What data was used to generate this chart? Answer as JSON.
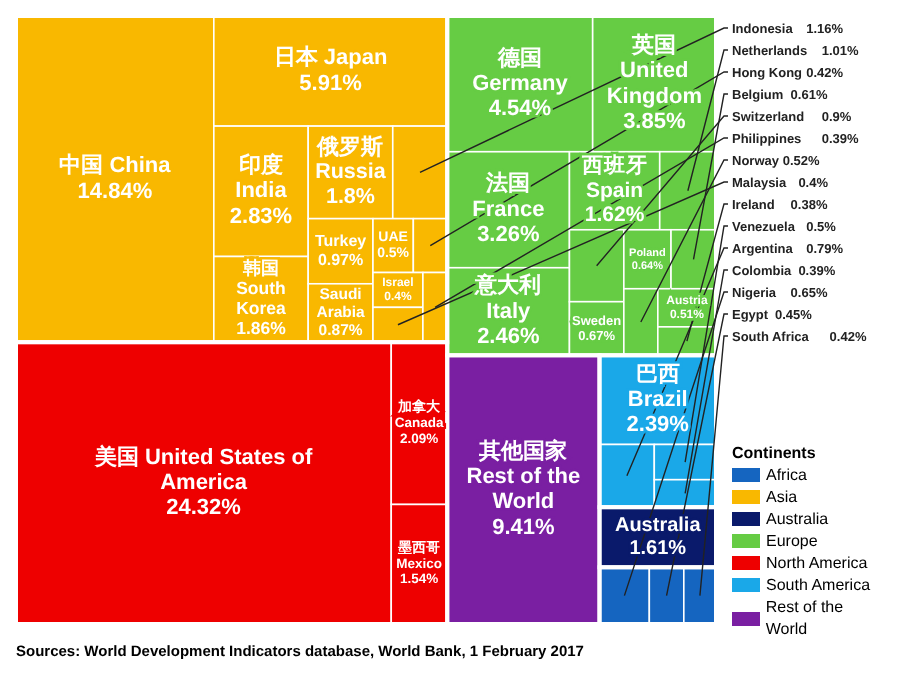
{
  "chart_data": {
    "type": "other",
    "categories": [
      "中国 China",
      "日本 Japan",
      "印度 India",
      "韩国 South Korea",
      "俄罗斯 Russia",
      "Indonesia",
      "Turkey",
      "Saudi Arabia",
      "UAE",
      "Hong Kong",
      "Israel",
      "Malaysia",
      "Philippines",
      "美国 United States of America",
      "加拿大 Canada",
      "墨西哥 Mexico",
      "德国 Germany",
      "英国 United Kingdom",
      "法国 France",
      "意大利 Italy",
      "西班牙 Spain",
      "Netherlands",
      "Switzerland",
      "Sweden",
      "Poland",
      "Belgium",
      "Norway",
      "Austria",
      "Ireland",
      "Nigeria",
      "Egypt",
      "South Africa",
      "Australia",
      "巴西 Brazil",
      "Argentina",
      "Venezuela",
      "Colombia",
      "其他国家 Rest of the World"
    ],
    "series": [
      {
        "name": "Africa",
        "color": "#1565c0",
        "values": [
          null,
          null,
          null,
          null,
          null,
          null,
          null,
          null,
          null,
          null,
          null,
          null,
          null,
          null,
          null,
          null,
          null,
          null,
          null,
          null,
          null,
          null,
          null,
          null,
          null,
          null,
          null,
          null,
          null,
          0.65,
          0.45,
          0.42,
          null,
          null,
          null,
          null,
          null,
          null
        ],
        "value_labels": [
          null,
          null,
          null,
          null,
          null,
          null,
          null,
          null,
          null,
          null,
          null,
          null,
          null,
          null,
          null,
          null,
          null,
          null,
          null,
          null,
          null,
          null,
          null,
          null,
          null,
          null,
          null,
          null,
          null,
          "0.65%",
          "0.45%",
          "0.42%",
          null,
          null,
          null,
          null,
          null,
          null
        ]
      },
      {
        "name": "Asia",
        "color": "#f9b800",
        "values": [
          14.84,
          5.91,
          2.83,
          1.86,
          1.8,
          1.16,
          0.97,
          0.87,
          0.5,
          0.42,
          0.4,
          0.4,
          0.39,
          null,
          null,
          null,
          null,
          null,
          null,
          null,
          null,
          null,
          null,
          null,
          null,
          null,
          null,
          null,
          null,
          null,
          null,
          null,
          null,
          null,
          null,
          null,
          null,
          null
        ],
        "value_labels": [
          "14.84%",
          "5.91%",
          "2.83%",
          "1.86%",
          "1.8%",
          "1.16%",
          "0.97%",
          "0.87%",
          "0.5%",
          "0.42%",
          "0.4%",
          "0.4%",
          "0.39%",
          null,
          null,
          null,
          null,
          null,
          null,
          null,
          null,
          null,
          null,
          null,
          null,
          null,
          null,
          null,
          null,
          null,
          null,
          null,
          null,
          null,
          null,
          null,
          null,
          null
        ]
      },
      {
        "name": "Australia",
        "color": "#0a1a6b",
        "values": [
          null,
          null,
          null,
          null,
          null,
          null,
          null,
          null,
          null,
          null,
          null,
          null,
          null,
          null,
          null,
          null,
          null,
          null,
          null,
          null,
          null,
          null,
          null,
          null,
          null,
          null,
          null,
          null,
          null,
          null,
          null,
          null,
          1.61,
          null,
          null,
          null,
          null,
          null
        ],
        "value_labels": [
          null,
          null,
          null,
          null,
          null,
          null,
          null,
          null,
          null,
          null,
          null,
          null,
          null,
          null,
          null,
          null,
          null,
          null,
          null,
          null,
          null,
          null,
          null,
          null,
          null,
          null,
          null,
          null,
          null,
          null,
          null,
          null,
          "1.61%",
          null,
          null,
          null,
          null,
          null
        ]
      },
      {
        "name": "Europe",
        "color": "#66cc44",
        "values": [
          null,
          null,
          null,
          null,
          null,
          null,
          null,
          null,
          null,
          null,
          null,
          null,
          null,
          null,
          null,
          null,
          4.54,
          3.85,
          3.26,
          2.46,
          1.62,
          1.01,
          0.9,
          0.67,
          0.64,
          0.61,
          0.52,
          0.51,
          0.38,
          null,
          null,
          null,
          null,
          null,
          null,
          null,
          null,
          null
        ],
        "value_labels": [
          null,
          null,
          null,
          null,
          null,
          null,
          null,
          null,
          null,
          null,
          null,
          null,
          null,
          null,
          null,
          null,
          "4.54%",
          "3.85%",
          "3.26%",
          "2.46%",
          "1.62%",
          "1.01%",
          "0.9%",
          "0.67%",
          "0.64%",
          "0.61%",
          "0.52%",
          "0.51%",
          "0.38%",
          null,
          null,
          null,
          null,
          null,
          null,
          null,
          null,
          null
        ]
      },
      {
        "name": "North America",
        "color": "#ee0000",
        "values": [
          null,
          null,
          null,
          null,
          null,
          null,
          null,
          null,
          null,
          null,
          null,
          null,
          null,
          24.32,
          2.09,
          1.54,
          null,
          null,
          null,
          null,
          null,
          null,
          null,
          null,
          null,
          null,
          null,
          null,
          null,
          null,
          null,
          null,
          null,
          null,
          null,
          null,
          null,
          null
        ],
        "value_labels": [
          null,
          null,
          null,
          null,
          null,
          null,
          null,
          null,
          null,
          null,
          null,
          null,
          null,
          "24.32%",
          "2.09%",
          "1.54%",
          null,
          null,
          null,
          null,
          null,
          null,
          null,
          null,
          null,
          null,
          null,
          null,
          null,
          null,
          null,
          null,
          null,
          null,
          null,
          null,
          null,
          null
        ]
      },
      {
        "name": "South America",
        "color": "#1aa8e8",
        "values": [
          null,
          null,
          null,
          null,
          null,
          null,
          null,
          null,
          null,
          null,
          null,
          null,
          null,
          null,
          null,
          null,
          null,
          null,
          null,
          null,
          null,
          null,
          null,
          null,
          null,
          null,
          null,
          null,
          null,
          null,
          null,
          null,
          null,
          2.39,
          0.79,
          0.5,
          0.39,
          null
        ],
        "value_labels": [
          null,
          null,
          null,
          null,
          null,
          null,
          null,
          null,
          null,
          null,
          null,
          null,
          null,
          null,
          null,
          null,
          null,
          null,
          null,
          null,
          null,
          null,
          null,
          null,
          null,
          null,
          null,
          null,
          null,
          null,
          null,
          null,
          null,
          "2.39%",
          "0.79%",
          "0.5%",
          "0.39%",
          null
        ]
      },
      {
        "name": "Rest of the World",
        "color": "#7a1fa2",
        "values": [
          null,
          null,
          null,
          null,
          null,
          null,
          null,
          null,
          null,
          null,
          null,
          null,
          null,
          null,
          null,
          null,
          null,
          null,
          null,
          null,
          null,
          null,
          null,
          null,
          null,
          null,
          null,
          null,
          null,
          null,
          null,
          null,
          null,
          null,
          null,
          null,
          null,
          9.41
        ],
        "value_labels": [
          null,
          null,
          null,
          null,
          null,
          null,
          null,
          null,
          null,
          null,
          null,
          null,
          null,
          null,
          null,
          null,
          null,
          null,
          null,
          null,
          null,
          null,
          null,
          null,
          null,
          null,
          null,
          null,
          null,
          null,
          null,
          null,
          null,
          null,
          null,
          null,
          null,
          "9.41%"
        ]
      }
    ],
    "legend": "right",
    "legend_title": "Continents",
    "annotations": [
      "Sources: World Development Indicators database, World Bank, 1 February 2017"
    ]
  }
}
